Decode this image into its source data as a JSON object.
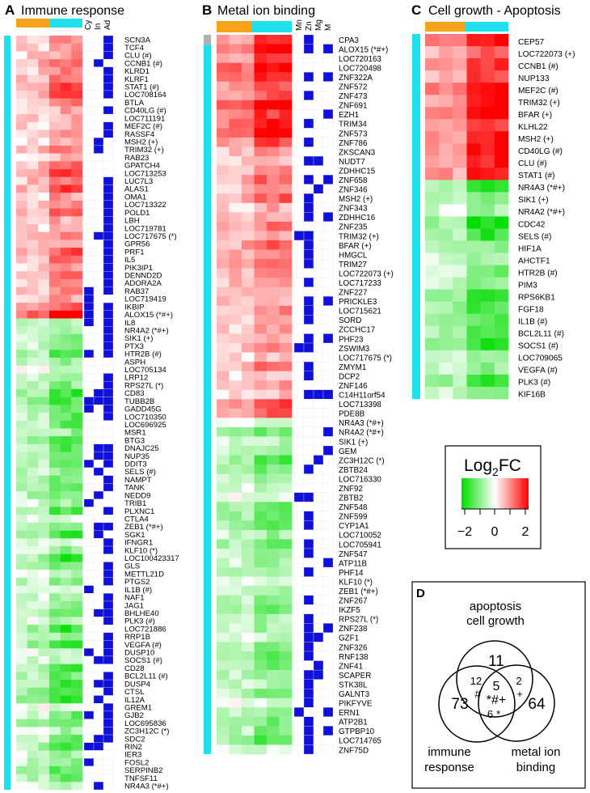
{
  "colors": {
    "orange": "#f7a318",
    "cyan": "#1fe0ef",
    "gray": "#b0b0b0",
    "blue": "#1010d8",
    "red": "#ff0000",
    "green": "#00dd00"
  },
  "panelA": {
    "letter": "A",
    "title": "Immune response",
    "columns": [
      "Cy",
      "In",
      "Ad"
    ],
    "genes": [
      "SCN3A",
      "TCF4",
      "CLU (#)",
      "CCNB1 (#)",
      "KLRD1",
      "KLRF1",
      "STAT1 (#)",
      "LOC708164",
      "BTLA",
      "CD40LG (#)",
      "LOC711191",
      "MEF2C (#)",
      "RASSF4",
      "MSH2 (+)",
      "TRIM32 (+)",
      "RAB23",
      "GPATCH4",
      "LOC713253",
      "LUC7L3",
      "ALAS1",
      "OMA1",
      "LOC713322",
      "POLD1",
      "LBH",
      "LOC719781",
      "LOC717675 (*)",
      "GPR56",
      "PRF1",
      "IL5",
      "PIK3IP1",
      "DENND2D",
      "ADORA2A",
      "RAB37",
      "LOC719419",
      "IKBIP",
      "ALOX15 (*#+)",
      "IL8",
      "NR4A2 (*#+)",
      "SIK1 (+)",
      "PTX3",
      "HTR2B (#)",
      "ASPH",
      "LOC705134",
      "LRP12",
      "RPS27L (*)",
      "CD83",
      "TUBB2B",
      "GADD45G",
      "LOC710350",
      "LOC696925",
      "MSR1",
      "BTG3",
      "DNAJC25",
      "NUP35",
      "DDIT3",
      "SELS (#)",
      "NAMPT",
      "TANK",
      "NEDD9",
      "TRIB1",
      "PLXNC1",
      "CTLA4",
      "ZEB1 (*#+)",
      "SGK1",
      "IFNGR1",
      "KLF10 (*)",
      "LOC100423317",
      "GLS",
      "METTL21D",
      "PTGS2",
      "IL1B (#)",
      "NAF1",
      "JAG1",
      "BHLHE40",
      "PLK3 (#)",
      "LOC721886",
      "RRP1B",
      "VEGFA (#)",
      "DUSP10",
      "SOCS1 (#)",
      "CD28",
      "BCL2L11 (#)",
      "DUSP4",
      "CTSL",
      "IL12A",
      "GREM1",
      "GJB2",
      "LOC695836",
      "ZC3H12C (*)",
      "SDC2",
      "RIN2",
      "IER3",
      "FOSL2",
      "SERPINB2",
      "TNFSF11",
      "NR4A3 (*#+)"
    ],
    "heatmap_note": "6 columns x 96 rows, log2FC"
  },
  "panelB": {
    "letter": "B",
    "title": "Metal ion binding",
    "columns": [
      "Mn",
      "Zn",
      "Mg",
      "M"
    ],
    "genes": [
      "CPA3",
      "ALOX15 (*#+)",
      "LOC720163",
      "LOC720498",
      "ZNF322A",
      "ZNF572",
      "ZNF473",
      "ZNF691",
      "EZH1",
      "TRIM34",
      "ZNF573",
      "ZNF786",
      "ZKSCAN3",
      "NUDT7",
      "ZDHHC15",
      "ZNF658",
      "ZNF346",
      "MSH2 (+)",
      "ZNF343",
      "ZDHHC16",
      "ZNF235",
      "TRIM32 (+)",
      "BFAR (+)",
      "HMGCL",
      "TRIM27",
      "LOC722073 (+)",
      "LOC717233",
      "ZNF227",
      "PRICKLE3",
      "LOC715621",
      "SORD",
      "ZCCHC17",
      "PHF23",
      "ZSWIM3",
      "LOC717675 (*)",
      "ZMYM1",
      "DCP2",
      "ZNF146",
      "C14H11orf54",
      "LOC713398",
      "PDE8B",
      "NR4A3 (*#+)",
      "NR4A2 (*#+)",
      "SIK1 (+)",
      "GEM",
      "ZC3H12C (*)",
      "ZBTB24",
      "LOC716330",
      "ZNF92",
      "ZBTB2",
      "ZNF548",
      "ZNF599",
      "CYP1A1",
      "LOC710052",
      "LOC705941",
      "ZNF547",
      "ATP11B",
      "PHF14",
      "KLF10 (*)",
      "ZEB1 (*#+)",
      "ZNF267",
      "IKZF5",
      "RPS27L (*)",
      "ZNF238",
      "GZF1",
      "ZNF326",
      "RNF138",
      "ZNF41",
      "SCAPER",
      "STK38L",
      "GALNT3",
      "PIKFYVE",
      "ERN1",
      "ATP2B1",
      "GTPBP10",
      "LOC714765",
      "ZNF75D"
    ]
  },
  "panelC": {
    "letter": "C",
    "title": "Cell growth - Apoptosis",
    "genes": [
      "CEP57",
      "LOC722073 (+)",
      "CCNB1 (#)",
      "NUP133",
      "MEF2C (#)",
      "TRIM32 (+)",
      "BFAR (+)",
      "KLHL22",
      "MSH2 (+)",
      "CD40LG (#)",
      "CLU (#)",
      "STAT1 (#)",
      "NR4A3 (*#+)",
      "SIK1 (+)",
      "NR4A2 (*#+)",
      "CDC42",
      "SELS (#)",
      "HIF1A",
      "AHCTF1",
      "HTR2B (#)",
      "PIM3",
      "RPS6KB1",
      "FGF18",
      "IL1B (#)",
      "BCL2L11 (#)",
      "SOCS1 (#)",
      "LOC709065",
      "VEGFA (#)",
      "PLK3 (#)",
      "KIF16B"
    ]
  },
  "legend": {
    "title_main": "Log",
    "title_sub": "2",
    "title_end": "FC",
    "ticks": [
      "−2",
      "0",
      "2"
    ]
  },
  "panelD": {
    "letter": "D",
    "label_top_1": "apoptosis",
    "label_top_2": "cell growth",
    "label_left_1": "immune",
    "label_left_2": "response",
    "label_right_1": "metal ion",
    "label_right_2": "binding",
    "n_top": "11",
    "n_left": "73",
    "n_right": "64",
    "n_top_left": "12",
    "sym_top_left": "#",
    "n_top_right": "2",
    "sym_top_right": "+",
    "n_center": "5",
    "sym_center": "*#+",
    "n_bottom": "6",
    "sym_bottom": "*"
  }
}
